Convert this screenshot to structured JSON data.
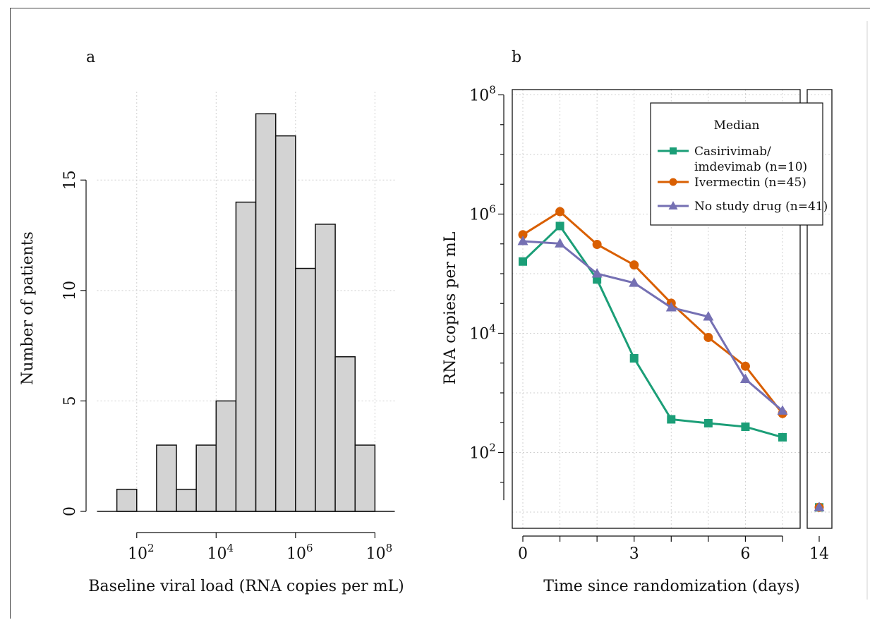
{
  "chart_data": [
    {
      "type": "bar",
      "panel_label": "a",
      "xlabel": "Baseline viral load (RNA copies per mL)",
      "ylabel": "Number of patients",
      "x_scale": "log10",
      "xlim": [
        1,
        8.5
      ],
      "ylim": [
        0,
        19
      ],
      "bin_width_log10": 0.5,
      "x_ticks": [
        {
          "exp": 2,
          "base": "10",
          "power": "2"
        },
        {
          "exp": 4,
          "base": "10",
          "power": "4"
        },
        {
          "exp": 6,
          "base": "10",
          "power": "6"
        },
        {
          "exp": 8,
          "base": "10",
          "power": "8"
        }
      ],
      "y_ticks": [
        "0",
        "5",
        "10",
        "15"
      ],
      "y_tick_values": [
        0,
        5,
        10,
        15
      ],
      "bins_log10_left": [
        1.5,
        2.0,
        2.5,
        3.0,
        3.5,
        4.0,
        4.5,
        5.0,
        5.5,
        6.0,
        6.5,
        7.0,
        7.5
      ],
      "counts": [
        1,
        0,
        3,
        1,
        3,
        5,
        14,
        18,
        17,
        11,
        13,
        7,
        3
      ],
      "bar_color": "#d3d3d3",
      "grid": true
    },
    {
      "type": "line",
      "panel_label": "b",
      "xlabel": "Time since randomization (days)",
      "ylabel": "RNA copies per mL",
      "y_scale": "log10",
      "ylim_log10": [
        0.8,
        8.0
      ],
      "x_ticks": [
        "0",
        "3",
        "6"
      ],
      "x_tick_values": [
        0,
        3,
        6
      ],
      "x_break_tick": "14",
      "y_ticks": [
        {
          "exp": 2,
          "base": "10",
          "power": "2"
        },
        {
          "exp": 4,
          "base": "10",
          "power": "4"
        },
        {
          "exp": 6,
          "base": "10",
          "power": "6"
        },
        {
          "exp": 8,
          "base": "10",
          "power": "8"
        }
      ],
      "legend": {
        "title": "Median",
        "position": "top-right"
      },
      "series": [
        {
          "name_lines": [
            "Casirivimab/",
            "imdevimab (n=10)"
          ],
          "color": "#1b9e77",
          "marker": "square",
          "x": [
            0,
            1,
            2,
            3,
            4,
            5,
            6,
            7,
            14
          ],
          "y": [
            160000,
            630000,
            80000,
            3800,
            360,
            310,
            270,
            180,
            12
          ]
        },
        {
          "name_lines": [
            "Ivermectin (n=45)"
          ],
          "color": "#d95f02",
          "marker": "circle",
          "x": [
            0,
            1,
            2,
            3,
            4,
            5,
            6,
            7,
            14
          ],
          "y": [
            450000,
            1100000,
            310000,
            140000,
            32000,
            8500,
            2800,
            450,
            12
          ]
        },
        {
          "name_lines": [
            "No study drug (n=41)"
          ],
          "color": "#7570b3",
          "marker": "triangle",
          "x": [
            0,
            1,
            2,
            3,
            4,
            5,
            6,
            7,
            14
          ],
          "y": [
            350000,
            320000,
            100000,
            70000,
            27000,
            19000,
            1700,
            500,
            12
          ]
        }
      ],
      "background_points_note": ""
    }
  ]
}
